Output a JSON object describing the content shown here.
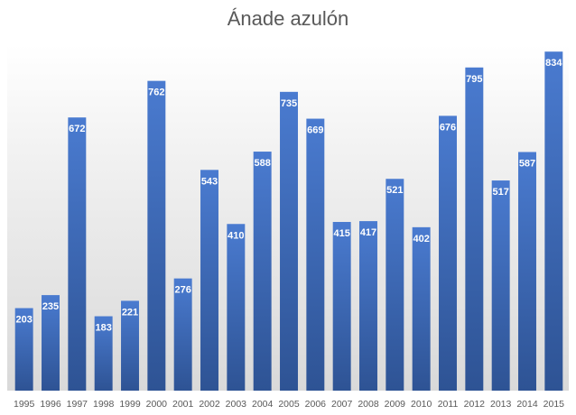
{
  "chart_data": {
    "type": "bar",
    "title": "Ánade azulón",
    "xlabel": "",
    "ylabel": "",
    "ylim": [
      0,
      850
    ],
    "grid": false,
    "legend": "none",
    "categories": [
      "1995",
      "1996",
      "1997",
      "1998",
      "1999",
      "2000",
      "2001",
      "2002",
      "2003",
      "2004",
      "2005",
      "2006",
      "2007",
      "2008",
      "2009",
      "2010",
      "2011",
      "2012",
      "2013",
      "2014",
      "2015"
    ],
    "values": [
      203,
      235,
      672,
      183,
      221,
      762,
      276,
      543,
      410,
      588,
      735,
      669,
      415,
      417,
      521,
      402,
      676,
      795,
      517,
      587,
      834
    ],
    "colors": {
      "bar_top": "#4a7bd0",
      "bar_bottom": "#2e5394",
      "label": "#ffffff",
      "axis_text": "#595959"
    }
  }
}
